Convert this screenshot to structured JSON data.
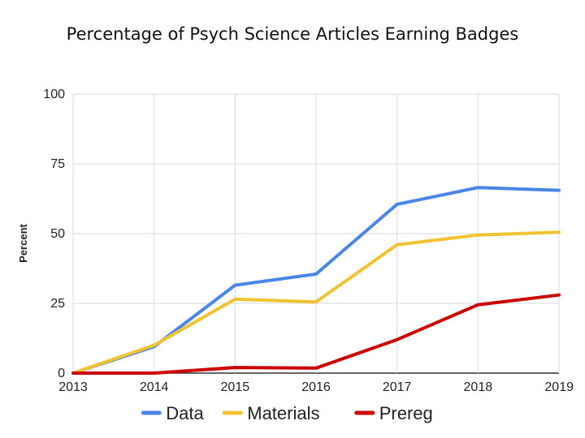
{
  "chart_data": {
    "type": "line",
    "title": "Percentage of Psych Science Articles Earning Badges",
    "xlabel": "",
    "ylabel": "Percent",
    "categories": [
      "2013",
      "2014",
      "2015",
      "2016",
      "2017",
      "2018",
      "2019"
    ],
    "yticks": [
      "0",
      "25",
      "50",
      "75",
      "100"
    ],
    "ylim": [
      0,
      100
    ],
    "grid": true,
    "legend_position": "bottom",
    "series": [
      {
        "name": "Data",
        "color": "#4a86e8",
        "values": [
          0,
          9.5,
          31.5,
          35.5,
          60.5,
          66.5,
          65.5
        ]
      },
      {
        "name": "Materials",
        "color": "#f1c232",
        "values": [
          0,
          10,
          26.5,
          25.5,
          46,
          49.5,
          50.5
        ]
      },
      {
        "name": "Prereg",
        "color": "#cc0000",
        "values": [
          0,
          0,
          2,
          1.8,
          12,
          24.5,
          28
        ]
      }
    ]
  }
}
